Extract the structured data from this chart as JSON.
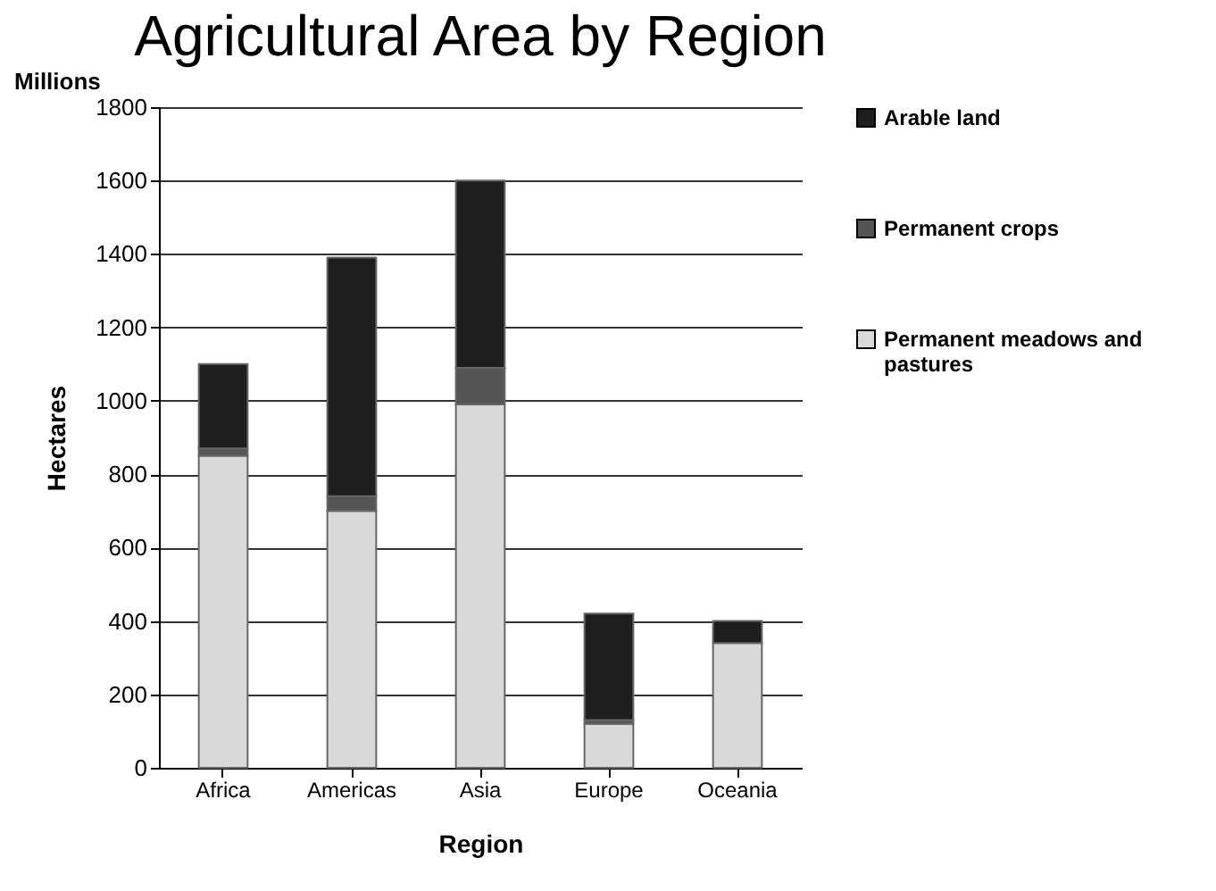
{
  "chart_data": {
    "type": "bar",
    "title": "Agricultural Area by Region",
    "xlabel": "Region",
    "ylabel": "Hectares",
    "annotations": [
      "Millions"
    ],
    "categories": [
      "Africa",
      "Americas",
      "Asia",
      "Europe",
      "Oceania"
    ],
    "stacked": true,
    "series": [
      {
        "name": "Permanent meadows and pastures",
        "color": "#d9d9d9",
        "values": [
          850,
          700,
          990,
          120,
          340
        ]
      },
      {
        "name": "Permanent crops",
        "color": "#555555",
        "values": [
          20,
          40,
          100,
          10,
          null
        ]
      },
      {
        "name": "Arable land",
        "color": "#1e1e1e",
        "values": [
          230,
          650,
          510,
          290,
          60
        ]
      }
    ],
    "ylim": [
      0,
      1800
    ],
    "yticks": [
      0,
      200,
      400,
      600,
      800,
      1000,
      1200,
      1400,
      1600,
      1800
    ],
    "grid": "y",
    "legend": "right"
  }
}
